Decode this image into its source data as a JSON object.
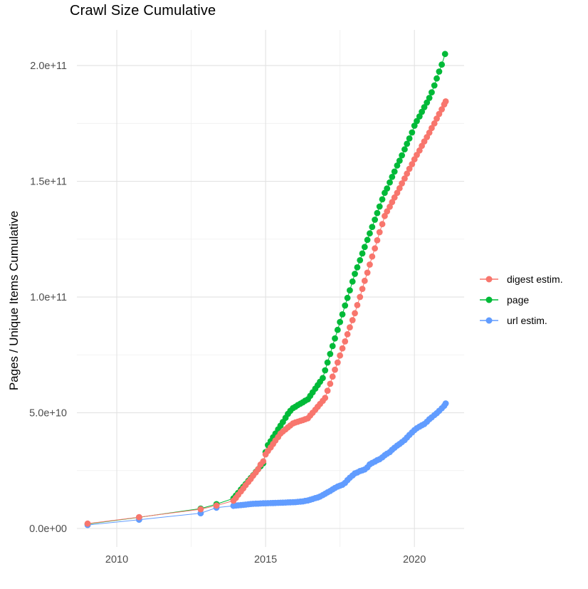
{
  "chart": {
    "title": "Crawl Size Cumulative",
    "y_axis_label": "Pages / Unique Items Cumulative"
  },
  "chart_data": {
    "type": "line",
    "title": "Crawl Size Cumulative",
    "xlabel": "",
    "ylabel": "Pages / Unique Items Cumulative",
    "x_unit": "decimal year",
    "y_unit": "count",
    "y_value_multiplier": 1000000000.0,
    "xlim": [
      2008.66,
      2021.67
    ],
    "ylim_e9": [
      -8,
      215.4
    ],
    "grid": true,
    "legend_position": "right",
    "x_ticks": [
      {
        "value": 2010,
        "label": "2010"
      },
      {
        "value": 2015,
        "label": "2015"
      },
      {
        "value": 2020,
        "label": "2020"
      }
    ],
    "x_minor": [
      2012.5,
      2017.5
    ],
    "y_ticks": [
      {
        "value_e9": 0,
        "label": "0.0e+00"
      },
      {
        "value_e9": 50,
        "label": "5.0e+10"
      },
      {
        "value_e9": 100,
        "label": "1.0e+11"
      },
      {
        "value_e9": 150,
        "label": "1.5e+11"
      },
      {
        "value_e9": 200,
        "label": "2.0e+11"
      }
    ],
    "y_minor_e9": [
      25,
      75,
      125,
      175
    ],
    "draw_order": [
      1,
      2,
      0
    ],
    "series": [
      {
        "name": "digest estim.",
        "color": "#F8766D",
        "points_year_e9": [
          [
            2009.02,
            2.1
          ],
          [
            2010.75,
            4.9
          ],
          [
            2012.82,
            8.3
          ],
          [
            2013.35,
            9.9
          ],
          [
            2013.92,
            12
          ],
          [
            2014,
            13.2
          ],
          [
            2014.08,
            14.6
          ],
          [
            2014.17,
            16
          ],
          [
            2014.25,
            17.3
          ],
          [
            2014.33,
            18.7
          ],
          [
            2014.42,
            20.1
          ],
          [
            2014.5,
            21.4
          ],
          [
            2014.58,
            22.8
          ],
          [
            2014.67,
            24.2
          ],
          [
            2014.75,
            25.6
          ],
          [
            2014.83,
            27.6
          ],
          [
            2014.92,
            29
          ],
          [
            2015,
            32
          ],
          [
            2015.08,
            33.5
          ],
          [
            2015.17,
            35
          ],
          [
            2015.25,
            36.5
          ],
          [
            2015.33,
            38
          ],
          [
            2015.42,
            39.5
          ],
          [
            2015.5,
            41
          ],
          [
            2015.58,
            41.9
          ],
          [
            2015.67,
            42.8
          ],
          [
            2015.75,
            43.7
          ],
          [
            2015.83,
            44.5
          ],
          [
            2015.92,
            45.4
          ],
          [
            2016,
            45.8
          ],
          [
            2016.08,
            46.1
          ],
          [
            2016.17,
            46.5
          ],
          [
            2016.25,
            46.8
          ],
          [
            2016.33,
            47.2
          ],
          [
            2016.42,
            47.6
          ],
          [
            2016.5,
            48.8
          ],
          [
            2016.58,
            50
          ],
          [
            2016.67,
            51.3
          ],
          [
            2016.75,
            52.6
          ],
          [
            2016.83,
            53.8
          ],
          [
            2016.92,
            55.1
          ],
          [
            2017,
            56.4
          ],
          [
            2017.08,
            59.5
          ],
          [
            2017.17,
            62.5
          ],
          [
            2017.25,
            65.6
          ],
          [
            2017.33,
            68.6
          ],
          [
            2017.42,
            71.7
          ],
          [
            2017.5,
            74.7
          ],
          [
            2017.58,
            77.8
          ],
          [
            2017.67,
            80.8
          ],
          [
            2017.75,
            83.9
          ],
          [
            2017.83,
            86.9
          ],
          [
            2017.92,
            90
          ],
          [
            2018,
            93
          ],
          [
            2018.08,
            96.5
          ],
          [
            2018.17,
            100
          ],
          [
            2018.25,
            103.5
          ],
          [
            2018.33,
            107
          ],
          [
            2018.42,
            110.5
          ],
          [
            2018.5,
            114
          ],
          [
            2018.58,
            117.5
          ],
          [
            2018.67,
            121
          ],
          [
            2018.75,
            124.5
          ],
          [
            2018.83,
            128
          ],
          [
            2018.92,
            131.5
          ],
          [
            2019,
            135
          ],
          [
            2019.08,
            137
          ],
          [
            2019.17,
            139
          ],
          [
            2019.25,
            141
          ],
          [
            2019.33,
            143
          ],
          [
            2019.42,
            145
          ],
          [
            2019.5,
            147
          ],
          [
            2019.58,
            149.1
          ],
          [
            2019.67,
            151.2
          ],
          [
            2019.75,
            153.3
          ],
          [
            2019.83,
            155.4
          ],
          [
            2019.92,
            157.4
          ],
          [
            2020,
            159.5
          ],
          [
            2020.08,
            161.4
          ],
          [
            2020.17,
            163.3
          ],
          [
            2020.25,
            165.3
          ],
          [
            2020.33,
            167.2
          ],
          [
            2020.42,
            169.1
          ],
          [
            2020.5,
            171
          ],
          [
            2020.58,
            173
          ],
          [
            2020.67,
            175
          ],
          [
            2020.75,
            177.1
          ],
          [
            2020.83,
            179.1
          ],
          [
            2020.92,
            181.1
          ],
          [
            2021,
            183.2
          ],
          [
            2021.05,
            184.5
          ]
        ]
      },
      {
        "name": "page",
        "color": "#00BA38",
        "points_year_e9": [
          [
            2009.02,
            1.9
          ],
          [
            2010.75,
            4.8
          ],
          [
            2012.82,
            8.6
          ],
          [
            2013.35,
            10.5
          ],
          [
            2013.92,
            13
          ],
          [
            2014,
            14.2
          ],
          [
            2014.08,
            15.4
          ],
          [
            2014.17,
            16.8
          ],
          [
            2014.25,
            18
          ],
          [
            2014.33,
            19.2
          ],
          [
            2014.42,
            20.6
          ],
          [
            2014.5,
            21.8
          ],
          [
            2014.58,
            23
          ],
          [
            2014.67,
            24.4
          ],
          [
            2014.75,
            25.6
          ],
          [
            2014.83,
            26.9
          ],
          [
            2014.92,
            28.2
          ],
          [
            2015,
            33
          ],
          [
            2015.08,
            36
          ],
          [
            2015.17,
            37.7
          ],
          [
            2015.25,
            39.4
          ],
          [
            2015.33,
            41
          ],
          [
            2015.42,
            42.8
          ],
          [
            2015.5,
            44.4
          ],
          [
            2015.58,
            46
          ],
          [
            2015.67,
            47.8
          ],
          [
            2015.75,
            49.5
          ],
          [
            2015.83,
            50.8
          ],
          [
            2015.92,
            52
          ],
          [
            2016,
            52.6
          ],
          [
            2016.08,
            53.3
          ],
          [
            2016.17,
            53.9
          ],
          [
            2016.25,
            54.5
          ],
          [
            2016.33,
            55.2
          ],
          [
            2016.42,
            55.8
          ],
          [
            2016.5,
            57.3
          ],
          [
            2016.58,
            58.8
          ],
          [
            2016.67,
            60.4
          ],
          [
            2016.75,
            61.9
          ],
          [
            2016.83,
            63.4
          ],
          [
            2016.92,
            65
          ],
          [
            2017,
            68.3
          ],
          [
            2017.08,
            71.7
          ],
          [
            2017.17,
            75.4
          ],
          [
            2017.25,
            78.8
          ],
          [
            2017.33,
            82.1
          ],
          [
            2017.42,
            85.8
          ],
          [
            2017.5,
            89.2
          ],
          [
            2017.58,
            92.5
          ],
          [
            2017.67,
            96.3
          ],
          [
            2017.75,
            99.6
          ],
          [
            2017.83,
            102.9
          ],
          [
            2017.92,
            106.7
          ],
          [
            2018,
            110
          ],
          [
            2018.08,
            112.8
          ],
          [
            2018.17,
            115.9
          ],
          [
            2018.25,
            118.8
          ],
          [
            2018.33,
            121.6
          ],
          [
            2018.42,
            124.7
          ],
          [
            2018.5,
            127.5
          ],
          [
            2018.58,
            130.3
          ],
          [
            2018.67,
            133.4
          ],
          [
            2018.75,
            136.3
          ],
          [
            2018.83,
            139.1
          ],
          [
            2018.92,
            142.2
          ],
          [
            2019,
            145
          ],
          [
            2019.08,
            146.9
          ],
          [
            2019.17,
            149.5
          ],
          [
            2019.25,
            151.9
          ],
          [
            2019.33,
            154.2
          ],
          [
            2019.42,
            156.8
          ],
          [
            2019.5,
            158.9
          ],
          [
            2019.58,
            161.2
          ],
          [
            2019.67,
            163.8
          ],
          [
            2019.75,
            166.2
          ],
          [
            2019.83,
            168.5
          ],
          [
            2019.92,
            171.1
          ],
          [
            2020,
            174
          ],
          [
            2020.08,
            176
          ],
          [
            2020.17,
            178
          ],
          [
            2020.25,
            180
          ],
          [
            2020.33,
            182
          ],
          [
            2020.42,
            184
          ],
          [
            2020.5,
            186
          ],
          [
            2020.58,
            188.4
          ],
          [
            2020.67,
            191.4
          ],
          [
            2020.75,
            194.4
          ],
          [
            2020.83,
            197.4
          ],
          [
            2020.92,
            200.4
          ],
          [
            2021.03,
            205
          ]
        ]
      },
      {
        "name": "url estim.",
        "color": "#619CFF",
        "points_year_e9": [
          [
            2009.02,
            1.5
          ],
          [
            2010.75,
            3.8
          ],
          [
            2012.82,
            6.6
          ],
          [
            2013.35,
            9
          ],
          [
            2013.92,
            9.8
          ],
          [
            2014,
            9.9
          ],
          [
            2014.08,
            10
          ],
          [
            2014.17,
            10.1
          ],
          [
            2014.25,
            10.2
          ],
          [
            2014.33,
            10.3
          ],
          [
            2014.42,
            10.45
          ],
          [
            2014.5,
            10.6
          ],
          [
            2014.58,
            10.65
          ],
          [
            2014.67,
            10.7
          ],
          [
            2014.75,
            10.75
          ],
          [
            2014.83,
            10.8
          ],
          [
            2014.92,
            10.85
          ],
          [
            2015,
            10.9
          ],
          [
            2015.08,
            10.93
          ],
          [
            2015.17,
            10.97
          ],
          [
            2015.25,
            11
          ],
          [
            2015.33,
            11.03
          ],
          [
            2015.42,
            11.07
          ],
          [
            2015.5,
            11.1
          ],
          [
            2015.58,
            11.15
          ],
          [
            2015.67,
            11.2
          ],
          [
            2015.75,
            11.25
          ],
          [
            2015.83,
            11.3
          ],
          [
            2015.92,
            11.35
          ],
          [
            2016,
            11.4
          ],
          [
            2016.08,
            11.5
          ],
          [
            2016.17,
            11.6
          ],
          [
            2016.25,
            11.7
          ],
          [
            2016.33,
            11.9
          ],
          [
            2016.42,
            12.1
          ],
          [
            2016.5,
            12.4
          ],
          [
            2016.58,
            12.7
          ],
          [
            2016.67,
            13.1
          ],
          [
            2016.75,
            13.4
          ],
          [
            2016.83,
            13.8
          ],
          [
            2016.92,
            14.4
          ],
          [
            2017,
            15
          ],
          [
            2017.08,
            15.6
          ],
          [
            2017.17,
            16.2
          ],
          [
            2017.25,
            16.9
          ],
          [
            2017.33,
            17.5
          ],
          [
            2017.42,
            18.1
          ],
          [
            2017.5,
            18.5
          ],
          [
            2017.58,
            18.9
          ],
          [
            2017.67,
            19.7
          ],
          [
            2017.75,
            20.9
          ],
          [
            2017.83,
            21.9
          ],
          [
            2017.92,
            22.9
          ],
          [
            2018,
            23.8
          ],
          [
            2018.08,
            24.2
          ],
          [
            2018.17,
            24.8
          ],
          [
            2018.25,
            25.1
          ],
          [
            2018.33,
            25.5
          ],
          [
            2018.42,
            26.4
          ],
          [
            2018.5,
            27.7
          ],
          [
            2018.58,
            28.3
          ],
          [
            2018.67,
            28.9
          ],
          [
            2018.75,
            29.5
          ],
          [
            2018.83,
            29.9
          ],
          [
            2018.92,
            30.7
          ],
          [
            2019,
            31.6
          ],
          [
            2019.08,
            32.3
          ],
          [
            2019.17,
            33
          ],
          [
            2019.25,
            34
          ],
          [
            2019.33,
            34.9
          ],
          [
            2019.42,
            35.8
          ],
          [
            2019.5,
            36.5
          ],
          [
            2019.58,
            37.3
          ],
          [
            2019.67,
            38.2
          ],
          [
            2019.75,
            39.3
          ],
          [
            2019.83,
            40.4
          ],
          [
            2019.92,
            41.5
          ],
          [
            2020,
            42.5
          ],
          [
            2020.08,
            43.3
          ],
          [
            2020.17,
            44
          ],
          [
            2020.25,
            44.6
          ],
          [
            2020.33,
            45.1
          ],
          [
            2020.42,
            46.1
          ],
          [
            2020.5,
            47.2
          ],
          [
            2020.58,
            48
          ],
          [
            2020.67,
            49
          ],
          [
            2020.75,
            49.8
          ],
          [
            2020.83,
            50.8
          ],
          [
            2020.92,
            51.9
          ],
          [
            2021,
            53
          ],
          [
            2021.05,
            54
          ]
        ]
      }
    ],
    "style": {
      "point_radius": 4.4,
      "line_width": 1,
      "major_grid_color": "#e2e2e2",
      "minor_grid_color": "#efefef",
      "tick_label_color": "#4d4d4d",
      "background": "#ffffff"
    }
  }
}
